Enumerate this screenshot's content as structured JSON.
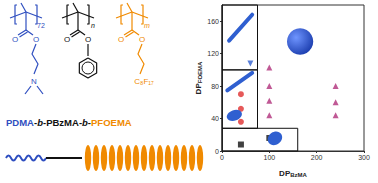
{
  "chart_data": {
    "type": "scatter",
    "xlabel": {
      "text": "DP",
      "sub": "BzMA"
    },
    "ylabel": {
      "text": "DP",
      "sub": "FOEMA"
    },
    "xlim": [
      0,
      300
    ],
    "xticks": [
      0,
      100,
      200,
      300
    ],
    "ylim": [
      0,
      180
    ],
    "yticks": [
      0,
      40,
      80,
      120,
      160
    ],
    "grid": false,
    "series": [
      {
        "color": "#2f5fd0",
        "marker": "triangle-down",
        "x": [
          60
        ],
        "y": [
          108
        ]
      },
      {
        "color": "#e03030",
        "marker": "circle",
        "x": [
          40,
          40,
          40
        ],
        "y": [
          70,
          52,
          36
        ]
      },
      {
        "color": "#111111",
        "marker": "square",
        "x": [
          40,
          100
        ],
        "y": [
          8,
          16
        ]
      },
      {
        "color": "#b0307a",
        "marker": "triangle",
        "x": [
          100,
          100,
          100,
          100,
          240,
          240,
          240
        ],
        "y": [
          103,
          80,
          62,
          44,
          80,
          60,
          44
        ]
      }
    ],
    "regions": [
      {
        "xlim": [
          0,
          75
        ],
        "ylim": [
          100,
          180
        ]
      },
      {
        "xlim": [
          0,
          75
        ],
        "ylim": [
          28,
          100
        ]
      },
      {
        "xlim": [
          0,
          160
        ],
        "ylim": [
          0,
          28
        ]
      }
    ]
  },
  "scheme": {
    "name": "PDMA-b-PBzMA-b-PFOEMA",
    "colors": [
      "#2f4fc0",
      "#111111",
      "#f08a00"
    ],
    "repeats": [
      "72",
      "n",
      "m"
    ],
    "atoms": [
      [
        "O",
        "O",
        "N"
      ],
      [
        "O",
        "O"
      ],
      [
        "O",
        "O"
      ]
    ],
    "chain": "C₈F₁₇"
  }
}
